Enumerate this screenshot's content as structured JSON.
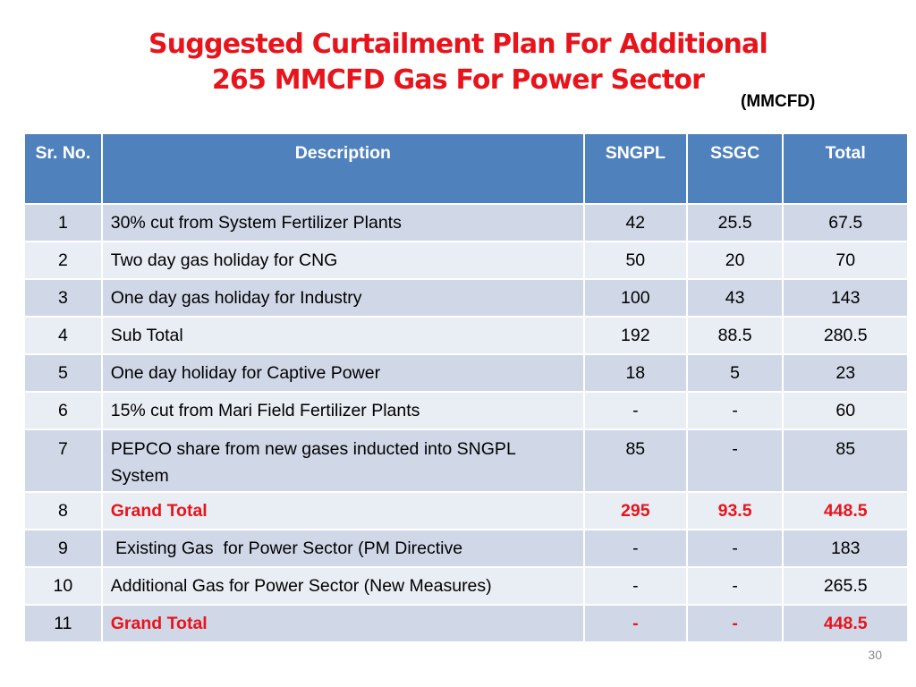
{
  "title": {
    "line1": "Suggested Curtailment Plan For Additional",
    "line2": "265 MMCFD Gas For Power Sector"
  },
  "unit_label": "(MMCFD)",
  "table": {
    "headers": {
      "sr_no": "Sr. No.",
      "description": "Description",
      "sngpl": "SNGPL",
      "ssgc": "SSGC",
      "total": "Total"
    },
    "rows": [
      {
        "sr": "1",
        "desc": "30% cut from System Fertilizer Plants",
        "sngpl": "42",
        "ssgc": "25.5",
        "total": "67.5"
      },
      {
        "sr": "2",
        "desc": "Two day gas holiday for CNG",
        "sngpl": "50",
        "ssgc": "20",
        "total": "70"
      },
      {
        "sr": "3",
        "desc": "One day gas holiday for Industry",
        "sngpl": "100",
        "ssgc": "43",
        "total": "143"
      },
      {
        "sr": "4",
        "desc": "Sub Total",
        "sngpl": "192",
        "ssgc": "88.5",
        "total": "280.5"
      },
      {
        "sr": "5",
        "desc": "One day holiday for Captive Power",
        "sngpl": "18",
        "ssgc": "5",
        "total": "23"
      },
      {
        "sr": "6",
        "desc": "15% cut from Mari Field Fertilizer Plants",
        "sngpl": "-",
        "ssgc": "-",
        "total": "60"
      },
      {
        "sr": "7",
        "desc": "PEPCO share from new gases inducted into SNGPL System",
        "sngpl": "85",
        "ssgc": "-",
        "total": "85"
      },
      {
        "sr": "8",
        "desc": "Grand Total",
        "sngpl": "295",
        "ssgc": "93.5",
        "total": "448.5"
      },
      {
        "sr": "9",
        "desc": " Existing Gas  for Power Sector (PM Directive",
        "sngpl": "-",
        "ssgc": "-",
        "total": "183"
      },
      {
        "sr": "10",
        "desc": "Additional Gas for Power Sector (New Measures)",
        "sngpl": "-",
        "ssgc": "-",
        "total": "265.5"
      },
      {
        "sr": "11",
        "desc": "Grand Total",
        "sngpl": "-",
        "ssgc": "-",
        "total": "448.5"
      }
    ]
  },
  "slide_number": "30",
  "colors": {
    "title_red": "#e8141c",
    "header_blue": "#4f81bd",
    "row_dark": "#d0d8e8",
    "row_light": "#e9edf4"
  }
}
